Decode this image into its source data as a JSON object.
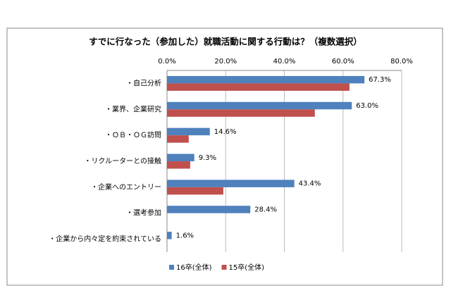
{
  "chart_data": {
    "type": "bar",
    "orientation": "horizontal",
    "title": "すでに行なった（参加した）就職活動に関する行動は？（複数選択）",
    "categories": [
      "・自己分析",
      "・業界、企業研究",
      "・ＯＢ・ＯＧ訪問",
      "・リクルーターとの接触",
      "・企業へのエントリー",
      "・選考参加",
      "・企業から内々定を約束されている"
    ],
    "series": [
      {
        "name": "16卒(全体)",
        "color": "#4f81bd",
        "values": [
          67.3,
          63.0,
          14.6,
          9.3,
          43.4,
          28.4,
          1.6
        ],
        "value_labels": [
          "67.3%",
          "63.0%",
          "14.6%",
          "9.3%",
          "43.4%",
          "28.4%",
          "1.6%"
        ]
      },
      {
        "name": "15卒(全体)",
        "color": "#c0504d",
        "values": [
          62.2,
          50.4,
          7.4,
          7.9,
          19.2,
          null,
          null
        ]
      }
    ],
    "xlim": [
      0,
      80
    ],
    "xticks": [
      {
        "value": 0,
        "label": "0.0%"
      },
      {
        "value": 20,
        "label": "20.0%"
      },
      {
        "value": 40,
        "label": "40.0%"
      },
      {
        "value": 60,
        "label": "60.0%"
      },
      {
        "value": 80,
        "label": "80.0%"
      }
    ],
    "grid": true,
    "legend": "bottom"
  }
}
